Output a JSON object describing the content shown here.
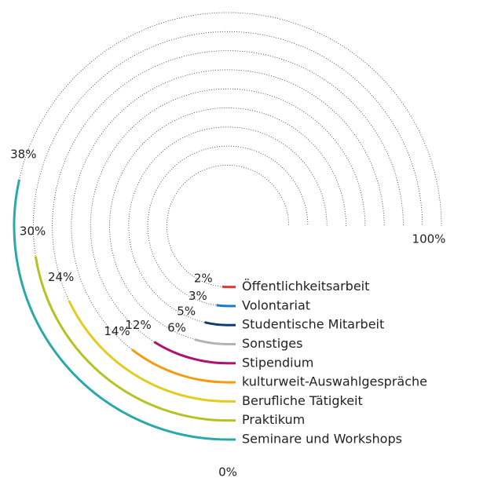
{
  "chart_data": {
    "type": "radial_bar",
    "categories": [
      "Öffentlichkeitsarbeit",
      "Volontariat",
      "Studentische Mitarbeit",
      "Sonstiges",
      "Stipendium",
      "kulturweit-Auswahlgespräche",
      "Berufliche Tätigkeit",
      "Praktikum",
      "Seminare und Workshops"
    ],
    "values": [
      2,
      3,
      5,
      6,
      12,
      14,
      24,
      30,
      38
    ],
    "value_labels": [
      "2%",
      "3%",
      "5%",
      "6%",
      "12%",
      "14%",
      "24%",
      "30%",
      "38%"
    ],
    "colors": [
      "#e0393e",
      "#1b7bc4",
      "#0f3b73",
      "#b3b3b3",
      "#b0126e",
      "#f39c12",
      "#e3cc1e",
      "#b7c11f",
      "#2aa9a9"
    ],
    "xlim": [
      0,
      100
    ],
    "xticks": [
      {
        "value": 0,
        "label": "0%"
      },
      {
        "value": 100,
        "label": "100%"
      }
    ]
  }
}
